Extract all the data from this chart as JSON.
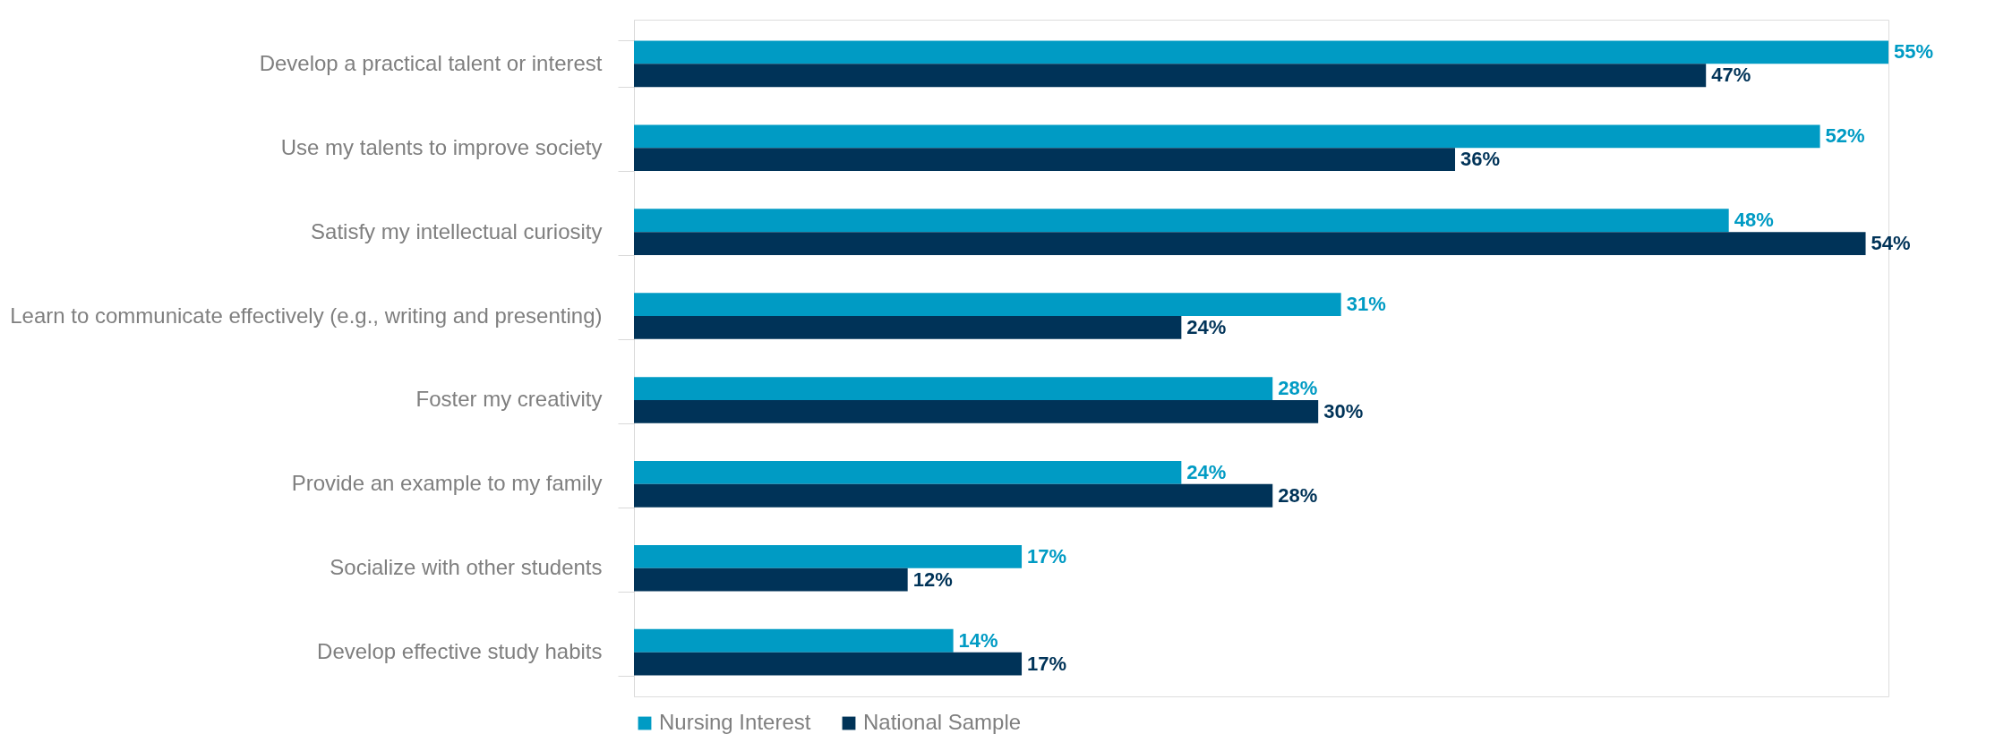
{
  "chart_data": {
    "type": "bar",
    "orientation": "horizontal",
    "data_labels": true,
    "legend": "bottom",
    "grid": false,
    "categories": [
      "Develop a practical talent or interest",
      "Use my talents to improve society",
      "Satisfy my intellectual curiosity",
      "Learn to communicate effectively (e.g., writing and presenting)",
      "Foster my creativity",
      "Provide an example to my family",
      "Socialize with other students",
      "Develop effective study habits"
    ],
    "series": [
      {
        "name": "Nursing Interest",
        "color": "#009bc4",
        "values": [
          55,
          52,
          48,
          31,
          28,
          24,
          17,
          14
        ],
        "value_labels": [
          "55%",
          "52%",
          "48%",
          "31%",
          "28%",
          "24%",
          "17%",
          "14%"
        ]
      },
      {
        "name": "National Sample",
        "color": "#003358",
        "values": [
          47,
          36,
          54,
          24,
          30,
          28,
          12,
          17
        ],
        "value_labels": [
          "47%",
          "36%",
          "54%",
          "24%",
          "30%",
          "28%",
          "12%",
          "17%"
        ]
      }
    ]
  }
}
